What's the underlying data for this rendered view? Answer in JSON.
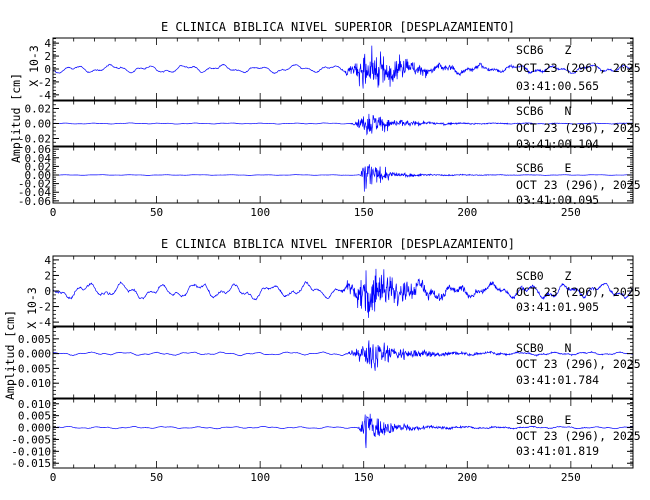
{
  "chart_data": [
    {
      "type": "line",
      "title": "E CLINICA BIBLICA NIVEL SUPERIOR [DESPLAZAMIENTO]",
      "ylabel": "Amplitud [cm]",
      "xlim": [
        0,
        280
      ],
      "xticks": [
        0,
        50,
        100,
        150,
        200,
        250
      ],
      "series_color": "#0000ff",
      "panels": [
        {
          "name": "SCB6 Z",
          "station": "SCB6   Z",
          "date": "OCT 23 (296), 2025",
          "time": "03:41:00.565",
          "ylim": [
            -4.8,
            4.8
          ],
          "yticks": [
            4,
            2,
            0,
            -2,
            -4
          ],
          "scale_note": "X 10-3",
          "pre_amp": 0.7,
          "peak_amp": 4.5,
          "onset": 137,
          "peak_t": 151,
          "decay": 14,
          "noise_freq": 0.45,
          "sig_freq": 3.2,
          "coda_end": 230
        },
        {
          "name": "SCB6 N",
          "station": "SCB6   N",
          "date": "OCT 23 (296), 2025",
          "time": "03:41:00.104",
          "ylim": [
            -0.03,
            0.03
          ],
          "yticks": [
            0.02,
            0,
            -0.02
          ],
          "ytick_labels": [
            "0.02",
            "0.00",
            "-0.02"
          ],
          "pre_amp": 0.0008,
          "peak_amp": 0.022,
          "onset": 142,
          "peak_t": 152,
          "decay": 10,
          "noise_freq": 0.5,
          "sig_freq": 3.5,
          "coda_end": 200
        },
        {
          "name": "SCB6 E",
          "station": "SCB6   E",
          "date": "OCT 23 (296), 2025",
          "time": "03:41:00.095",
          "ylim": [
            -0.065,
            0.065
          ],
          "yticks": [
            0.06,
            0.04,
            0.02,
            0,
            -0.02,
            -0.04,
            -0.06
          ],
          "ytick_labels": [
            "0.06",
            "0.04",
            "0.02",
            "0.00",
            "-0.02",
            "-0.04",
            "-0.06"
          ],
          "pre_amp": 0.0008,
          "peak_amp": 0.055,
          "onset": 147,
          "peak_t": 151,
          "decay": 6,
          "noise_freq": 0.5,
          "sig_freq": 3.8,
          "coda_end": 180
        }
      ]
    },
    {
      "type": "line",
      "title": "E CLINICA BIBLICA NIVEL INFERIOR [DESPLAZAMIENTO]",
      "ylabel": "Amplitud [cm]",
      "xlim": [
        0,
        280
      ],
      "xticks": [
        0,
        50,
        100,
        150,
        200,
        250
      ],
      "series_color": "#0000ff",
      "panels": [
        {
          "name": "SCB0 Z",
          "station": "SCB0   Z",
          "date": "OCT 23 (296), 2025",
          "time": "03:41:01.905",
          "ylim": [
            -4.5,
            4.5
          ],
          "yticks": [
            4,
            2,
            0,
            -2,
            -4
          ],
          "scale_note": "X 10-3",
          "pre_amp": 1.1,
          "peak_amp": 3.9,
          "onset": 136,
          "peak_t": 151,
          "decay": 16,
          "noise_freq": 0.45,
          "sig_freq": 3.0,
          "coda_end": 240
        },
        {
          "name": "SCB0 N",
          "station": "SCB0   N",
          "date": "OCT 23 (296), 2025",
          "time": "03:41:01.784",
          "ylim": [
            -0.015,
            0.009
          ],
          "yticks": [
            0.005,
            0,
            -0.005,
            -0.01
          ],
          "ytick_labels": [
            "0.005",
            "0.000",
            "-0.005",
            "-0.010"
          ],
          "pre_amp": 0.0006,
          "peak_amp": 0.008,
          "onset": 140,
          "peak_t": 151,
          "decay": 12,
          "noise_freq": 0.5,
          "sig_freq": 3.3,
          "coda_end": 215
        },
        {
          "name": "SCB0 E",
          "station": "SCB0   E",
          "date": "OCT 23 (296), 2025",
          "time": "03:41:01.819",
          "ylim": [
            -0.017,
            0.012
          ],
          "yticks": [
            0.01,
            0.005,
            0,
            -0.005,
            -0.01,
            -0.015
          ],
          "ytick_labels": [
            "0.010",
            "0.005",
            "0.000",
            "-0.005",
            "-0.010",
            "-0.015"
          ],
          "pre_amp": 0.0005,
          "peak_amp": 0.011,
          "onset": 146,
          "peak_t": 150,
          "decay": 8,
          "noise_freq": 0.5,
          "sig_freq": 3.6,
          "coda_end": 195
        }
      ]
    }
  ]
}
